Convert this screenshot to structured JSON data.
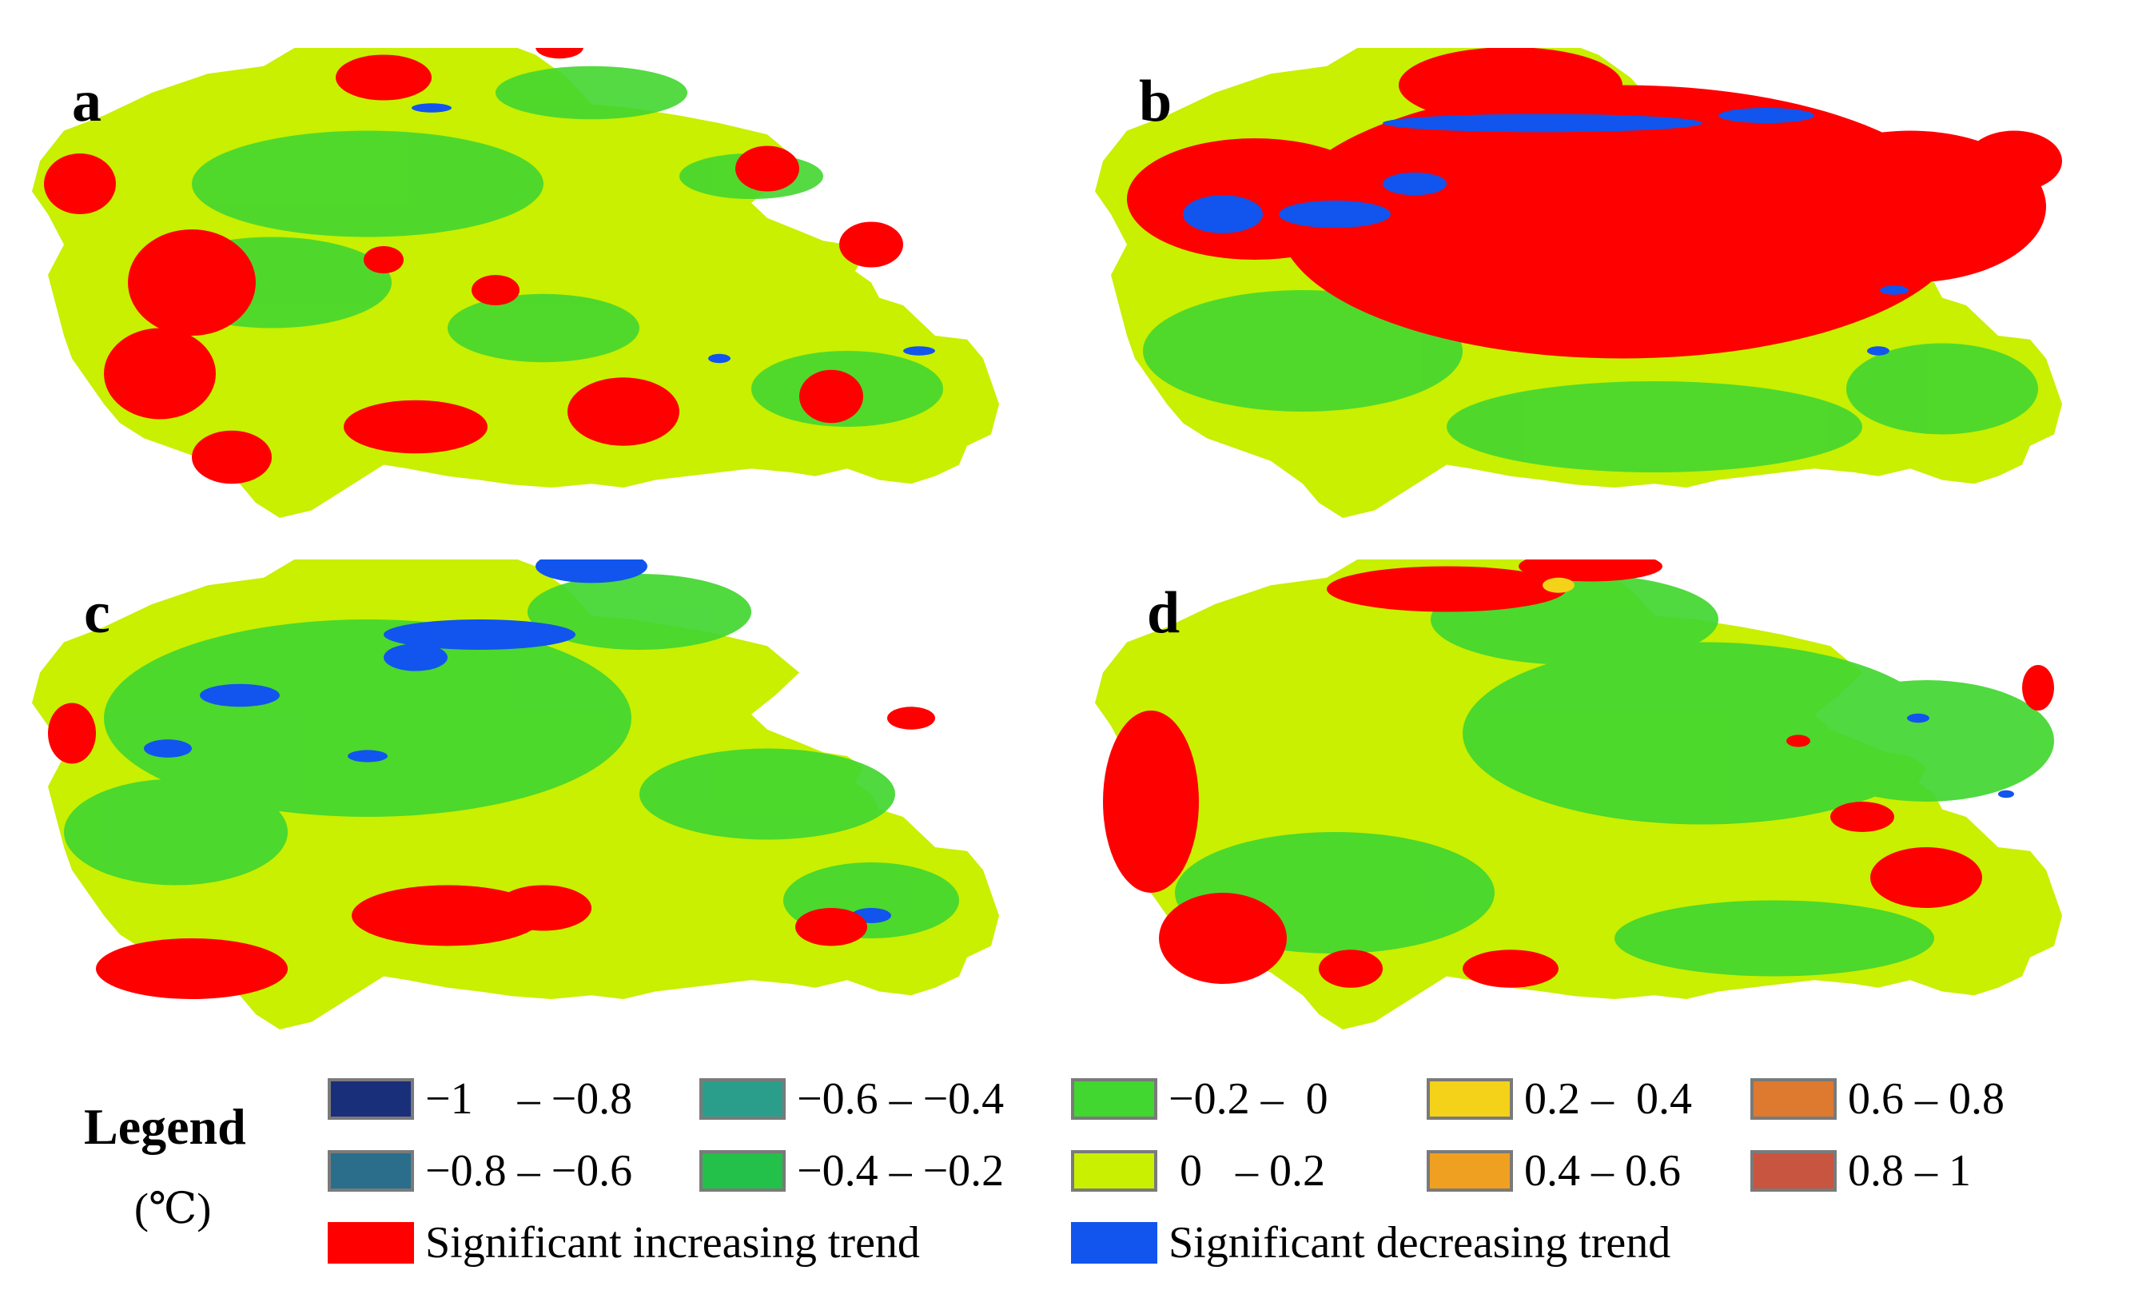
{
  "panels": [
    {
      "id": "a",
      "label": "a"
    },
    {
      "id": "b",
      "label": "b"
    },
    {
      "id": "c",
      "label": "c"
    },
    {
      "id": "d",
      "label": "d"
    }
  ],
  "legend": {
    "title": "Legend",
    "unit": "(℃)",
    "classes": [
      {
        "label": "−1    – −0.8",
        "color": "#1a2f7a"
      },
      {
        "label": "−0.8 – −0.6",
        "color": "#2a6e8c"
      },
      {
        "label": "−0.6 – −0.4",
        "color": "#2a9e8a"
      },
      {
        "label": "−0.4 – −0.2",
        "color": "#23c04a"
      },
      {
        "label": "−0.2 –  0",
        "color": "#42d630"
      },
      {
        "label": " 0   – 0.2",
        "color": "#c8f000"
      },
      {
        "label": "0.2 –  0.4",
        "color": "#f4d21a"
      },
      {
        "label": "0.4 – 0.6",
        "color": "#f0a020"
      },
      {
        "label": "0.6 – 0.8",
        "color": "#dd7a30"
      },
      {
        "label": "0.8 – 1",
        "color": "#c8553f"
      }
    ],
    "significant_increase": {
      "label": "Significant increasing trend",
      "color": "#ff0000"
    },
    "significant_decrease": {
      "label": "Significant decreasing trend",
      "color": "#1155ee"
    }
  }
}
